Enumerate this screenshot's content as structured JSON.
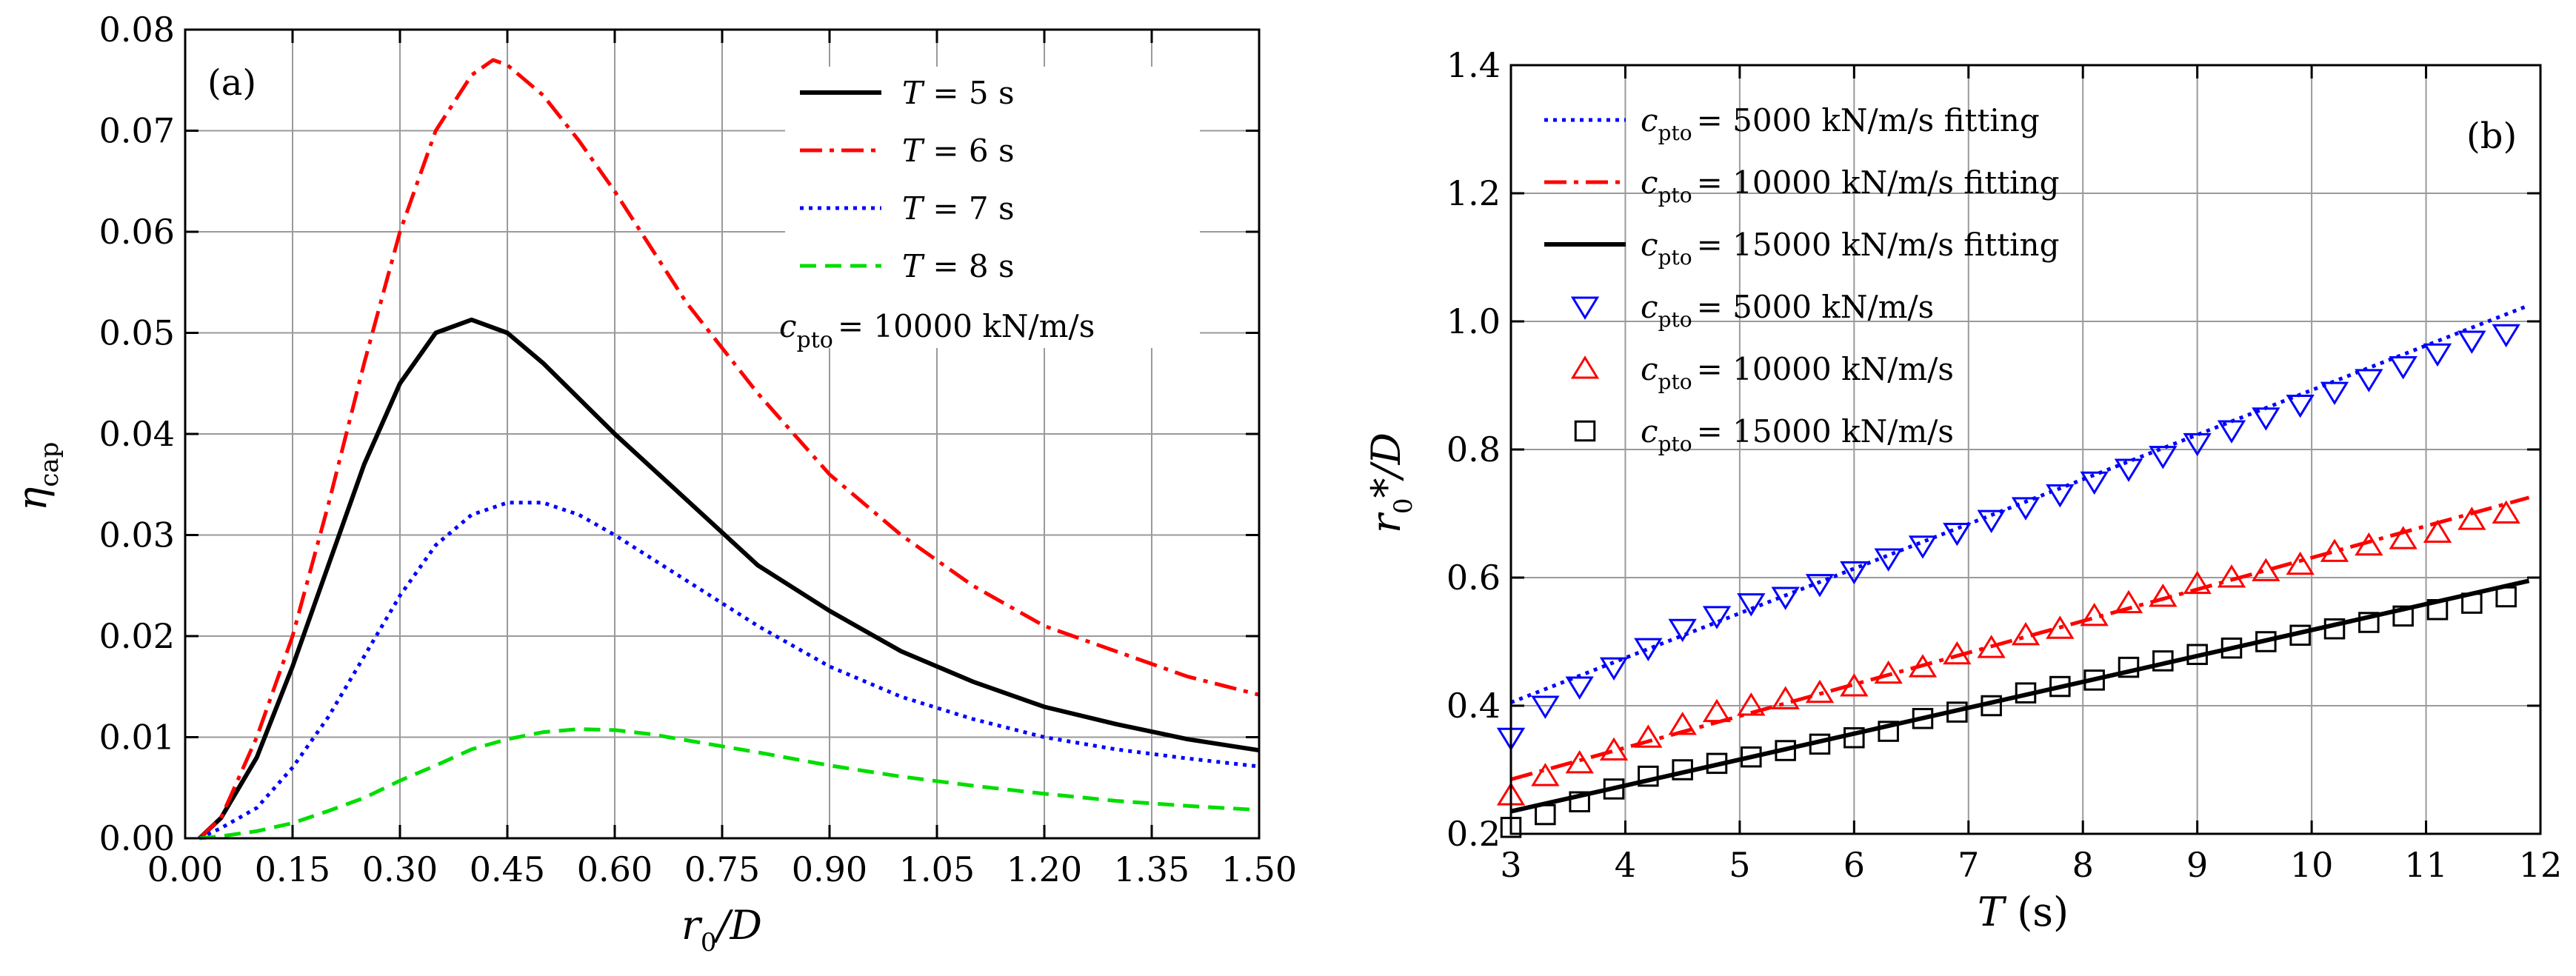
{
  "chart_data": [
    {
      "type": "line",
      "panel_label": "(a)",
      "xlabel": {
        "main": "r",
        "sub": "0",
        "rest": "/D"
      },
      "ylabel": {
        "main": "η",
        "sub": "cap"
      },
      "xlim": [
        0,
        1.5
      ],
      "ylim": [
        0,
        0.08
      ],
      "x_ticks": [
        "0.00",
        "0.15",
        "0.30",
        "0.45",
        "0.60",
        "0.75",
        "0.90",
        "1.05",
        "1.20",
        "1.35",
        "1.50"
      ],
      "y_ticks": [
        "0.00",
        "0.01",
        "0.02",
        "0.03",
        "0.04",
        "0.05",
        "0.06",
        "0.07",
        "0.08"
      ],
      "grid": true,
      "legend_position": "top-right",
      "note": {
        "pre": "c",
        "sub": "pto",
        "post": "= 10000 kN/m/s"
      },
      "series": [
        {
          "name": "T = 5 s",
          "var": "T",
          "rest": " = 5 s",
          "color": "#000000",
          "dash": "solid",
          "x": [
            0.02,
            0.05,
            0.1,
            0.15,
            0.2,
            0.25,
            0.3,
            0.35,
            0.4,
            0.45,
            0.5,
            0.55,
            0.6,
            0.7,
            0.8,
            0.9,
            1.0,
            1.1,
            1.2,
            1.3,
            1.4,
            1.5
          ],
          "y": [
            0.0,
            0.002,
            0.008,
            0.017,
            0.027,
            0.037,
            0.045,
            0.05,
            0.0513,
            0.05,
            0.047,
            0.0435,
            0.04,
            0.0335,
            0.027,
            0.0225,
            0.0185,
            0.0155,
            0.013,
            0.0113,
            0.0098,
            0.0087
          ]
        },
        {
          "name": "T = 6 s",
          "var": "T",
          "rest": " = 6 s",
          "color": "#ff0000",
          "dash": "dashdot",
          "x": [
            0.02,
            0.05,
            0.1,
            0.15,
            0.2,
            0.25,
            0.3,
            0.35,
            0.4,
            0.43,
            0.45,
            0.5,
            0.55,
            0.6,
            0.7,
            0.8,
            0.9,
            1.0,
            1.1,
            1.2,
            1.3,
            1.4,
            1.5
          ],
          "y": [
            0.0,
            0.002,
            0.01,
            0.02,
            0.033,
            0.047,
            0.06,
            0.07,
            0.0755,
            0.077,
            0.0765,
            0.0735,
            0.069,
            0.064,
            0.053,
            0.044,
            0.036,
            0.03,
            0.025,
            0.021,
            0.0185,
            0.016,
            0.0142
          ]
        },
        {
          "name": "T = 7 s",
          "var": "T",
          "rest": " = 7 s",
          "color": "#0000ff",
          "dash": "dotted",
          "x": [
            0.02,
            0.05,
            0.1,
            0.15,
            0.2,
            0.25,
            0.3,
            0.35,
            0.4,
            0.45,
            0.5,
            0.55,
            0.6,
            0.7,
            0.8,
            0.9,
            1.0,
            1.1,
            1.2,
            1.3,
            1.4,
            1.5
          ],
          "y": [
            0.0,
            0.001,
            0.003,
            0.007,
            0.012,
            0.018,
            0.024,
            0.029,
            0.032,
            0.0332,
            0.0332,
            0.032,
            0.03,
            0.0255,
            0.021,
            0.017,
            0.014,
            0.0118,
            0.01,
            0.0088,
            0.0079,
            0.0071
          ]
        },
        {
          "name": "T = 8 s",
          "var": "T",
          "rest": " = 8 s",
          "color": "#00dd00",
          "dash": "dashed",
          "x": [
            0.02,
            0.05,
            0.1,
            0.15,
            0.2,
            0.25,
            0.3,
            0.35,
            0.4,
            0.45,
            0.5,
            0.55,
            0.6,
            0.65,
            0.7,
            0.8,
            0.9,
            1.0,
            1.1,
            1.2,
            1.3,
            1.4,
            1.5
          ],
          "y": [
            0.0,
            0.0002,
            0.0007,
            0.0015,
            0.0027,
            0.004,
            0.0057,
            0.0072,
            0.0088,
            0.0098,
            0.0105,
            0.0108,
            0.0107,
            0.0103,
            0.0097,
            0.0085,
            0.0072,
            0.0061,
            0.0052,
            0.0044,
            0.0037,
            0.0032,
            0.0028
          ]
        }
      ]
    },
    {
      "type": "scatter",
      "panel_label": "(b)",
      "xlabel": {
        "main": "T",
        "rest": " (s)"
      },
      "ylabel": {
        "main": "r",
        "sub": "0",
        "rest": "*/D"
      },
      "xlim": [
        3,
        12
      ],
      "ylim": [
        0.2,
        1.4
      ],
      "x_ticks": [
        "3",
        "4",
        "5",
        "6",
        "7",
        "8",
        "9",
        "10",
        "11",
        "12"
      ],
      "y_ticks": [
        "0.2",
        "0.4",
        "0.6",
        "0.8",
        "1.0",
        "1.2",
        "1.4"
      ],
      "grid": true,
      "legend_position": "top-left",
      "fits": [
        {
          "name": "c_pto = 5000 kN/m/s fitting",
          "pre": "c",
          "sub": "pto",
          "post": "= 5000 kN/m/s fitting",
          "color": "#0000ff",
          "dash": "dotted",
          "x": [
            3,
            11.9
          ],
          "y": [
            0.405,
            1.025
          ]
        },
        {
          "name": "c_pto = 10000 kN/m/s fitting",
          "pre": "c",
          "sub": "pto",
          "post": "= 10000 kN/m/s fitting",
          "color": "#ff0000",
          "dash": "dashdot",
          "x": [
            3,
            11.9
          ],
          "y": [
            0.285,
            0.725
          ]
        },
        {
          "name": "c_pto = 15000 kN/m/s fitting",
          "pre": "c",
          "sub": "pto",
          "post": "= 15000 kN/m/s fitting",
          "color": "#000000",
          "dash": "solid",
          "x": [
            3,
            11.9
          ],
          "y": [
            0.235,
            0.595
          ]
        }
      ],
      "markers": [
        {
          "name": "c_pto = 5000 kN/m/s",
          "pre": "c",
          "sub": "pto",
          "post": "= 5000 kN/m/s",
          "color": "#0000ff",
          "shape": "triangle-down",
          "x": [
            3.0,
            3.3,
            3.6,
            3.9,
            4.2,
            4.5,
            4.8,
            5.1,
            5.4,
            5.7,
            6.0,
            6.3,
            6.6,
            6.9,
            7.2,
            7.5,
            7.8,
            8.1,
            8.4,
            8.7,
            9.0,
            9.3,
            9.6,
            9.9,
            10.2,
            10.5,
            10.8,
            11.1,
            11.4,
            11.7
          ],
          "y": [
            0.35,
            0.4,
            0.43,
            0.46,
            0.49,
            0.52,
            0.54,
            0.56,
            0.57,
            0.59,
            0.61,
            0.63,
            0.65,
            0.67,
            0.69,
            0.71,
            0.73,
            0.75,
            0.77,
            0.79,
            0.81,
            0.83,
            0.85,
            0.87,
            0.89,
            0.91,
            0.93,
            0.95,
            0.97,
            0.98
          ]
        },
        {
          "name": "c_pto = 10000 kN/m/s",
          "pre": "c",
          "sub": "pto",
          "post": "= 10000 kN/m/s",
          "color": "#ff0000",
          "shape": "triangle-up",
          "x": [
            3.0,
            3.3,
            3.6,
            3.9,
            4.2,
            4.5,
            4.8,
            5.1,
            5.4,
            5.7,
            6.0,
            6.3,
            6.6,
            6.9,
            7.2,
            7.5,
            7.8,
            8.1,
            8.4,
            8.7,
            9.0,
            9.3,
            9.6,
            9.9,
            10.2,
            10.5,
            10.8,
            11.1,
            11.4,
            11.7
          ],
          "y": [
            0.26,
            0.29,
            0.31,
            0.33,
            0.35,
            0.37,
            0.39,
            0.4,
            0.41,
            0.42,
            0.43,
            0.45,
            0.46,
            0.48,
            0.49,
            0.51,
            0.52,
            0.54,
            0.56,
            0.57,
            0.59,
            0.6,
            0.61,
            0.62,
            0.64,
            0.65,
            0.66,
            0.67,
            0.69,
            0.7
          ]
        },
        {
          "name": "c_pto = 15000 kN/m/s",
          "pre": "c",
          "sub": "pto",
          "post": "= 15000 kN/m/s",
          "color": "#000000",
          "shape": "square",
          "x": [
            3.0,
            3.3,
            3.6,
            3.9,
            4.2,
            4.5,
            4.8,
            5.1,
            5.4,
            5.7,
            6.0,
            6.3,
            6.6,
            6.9,
            7.2,
            7.5,
            7.8,
            8.1,
            8.4,
            8.7,
            9.0,
            9.3,
            9.6,
            9.9,
            10.2,
            10.5,
            10.8,
            11.1,
            11.4,
            11.7
          ],
          "y": [
            0.21,
            0.23,
            0.25,
            0.27,
            0.29,
            0.3,
            0.31,
            0.32,
            0.33,
            0.34,
            0.35,
            0.36,
            0.38,
            0.39,
            0.4,
            0.42,
            0.43,
            0.44,
            0.46,
            0.47,
            0.48,
            0.49,
            0.5,
            0.51,
            0.52,
            0.53,
            0.54,
            0.55,
            0.56,
            0.57
          ]
        }
      ]
    }
  ]
}
